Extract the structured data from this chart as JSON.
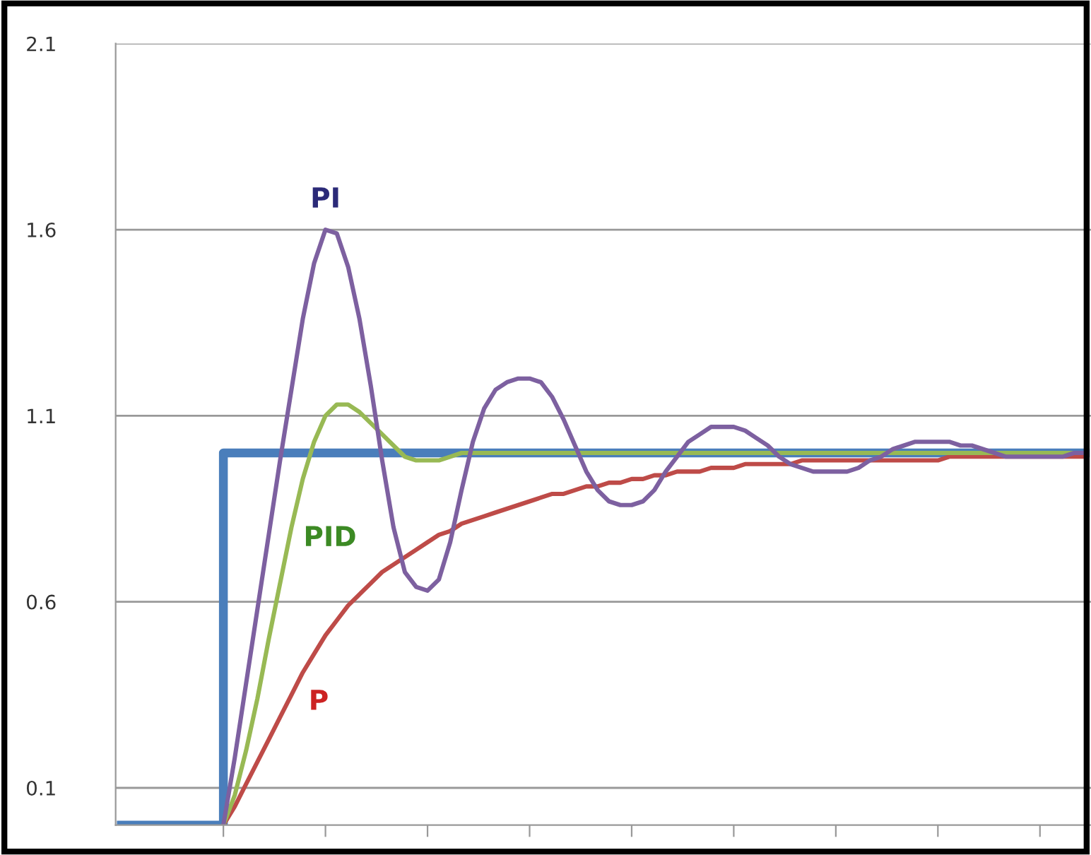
{
  "chart_data": {
    "type": "line",
    "categories": [
      null,
      null,
      null,
      null,
      null,
      null,
      null,
      null,
      null,
      null,
      null,
      null,
      null,
      null,
      null,
      null,
      null,
      null,
      null,
      null,
      null,
      null,
      null,
      null,
      null,
      null,
      null,
      null,
      null,
      null,
      null,
      null,
      null,
      null,
      null,
      null,
      null,
      null,
      null,
      null,
      null,
      null,
      null,
      null,
      null,
      null,
      null,
      null,
      null,
      null,
      null,
      null,
      null,
      null,
      null,
      null,
      null,
      null,
      null,
      null,
      null,
      null,
      null,
      null,
      null,
      null,
      null,
      null,
      null,
      null,
      null,
      null,
      null,
      null,
      null,
      null,
      null,
      null,
      null,
      null,
      null,
      null,
      null,
      null,
      null,
      null
    ],
    "ylim": [
      0,
      2.1
    ],
    "yticks": [
      0.1,
      0.6,
      1.1,
      1.6,
      2.1
    ],
    "grid": "y",
    "tick_labels": "y",
    "line_style": "solid",
    "marker": "none",
    "series": [
      {
        "type": "step",
        "color": "#4a7ebb",
        "values": [
          0,
          0,
          0,
          0,
          0,
          0,
          0,
          0,
          0,
          1,
          1,
          1,
          1,
          1,
          1,
          1,
          1,
          1,
          1,
          1,
          1,
          1,
          1,
          1,
          1,
          1,
          1,
          1,
          1,
          1,
          1,
          1,
          1,
          1,
          1,
          1,
          1,
          1,
          1,
          1,
          1,
          1,
          1,
          1,
          1,
          1,
          1,
          1,
          1,
          1,
          1,
          1,
          1,
          1,
          1,
          1,
          1,
          1,
          1,
          1,
          1,
          1,
          1,
          1,
          1,
          1,
          1,
          1,
          1,
          1,
          1,
          1,
          1,
          1,
          1,
          1,
          1,
          1,
          1,
          1,
          1,
          1,
          1,
          1,
          1,
          1
        ]
      },
      {
        "name": "P",
        "color": "#be4b48",
        "values": [
          null,
          null,
          null,
          null,
          null,
          null,
          null,
          null,
          null,
          0,
          0.05,
          0.11,
          0.17,
          0.23,
          0.29,
          0.35,
          0.41,
          0.46,
          0.51,
          0.55,
          0.59,
          0.62,
          0.65,
          0.68,
          0.7,
          0.72,
          0.74,
          0.76,
          0.78,
          0.79,
          0.81,
          0.82,
          0.83,
          0.84,
          0.85,
          0.86,
          0.87,
          0.88,
          0.89,
          0.89,
          0.9,
          0.91,
          0.91,
          0.92,
          0.92,
          0.93,
          0.93,
          0.94,
          0.94,
          0.95,
          0.95,
          0.95,
          0.96,
          0.96,
          0.96,
          0.97,
          0.97,
          0.97,
          0.97,
          0.97,
          0.98,
          0.98,
          0.98,
          0.98,
          0.98,
          0.98,
          0.98,
          0.98,
          0.98,
          0.98,
          0.98,
          0.98,
          0.98,
          0.99,
          0.99,
          0.99,
          0.99,
          0.99,
          0.99,
          0.99,
          0.99,
          0.99,
          0.99,
          0.99,
          0.99,
          0.99
        ]
      },
      {
        "name": "PID",
        "color": "#98b954",
        "values": [
          null,
          null,
          null,
          null,
          null,
          null,
          null,
          null,
          null,
          0,
          0.08,
          0.2,
          0.34,
          0.5,
          0.65,
          0.8,
          0.93,
          1.03,
          1.1,
          1.13,
          1.13,
          1.11,
          1.08,
          1.05,
          1.02,
          0.99,
          0.98,
          0.98,
          0.98,
          0.99,
          1,
          1,
          1,
          1,
          1,
          1,
          1,
          1,
          1,
          1,
          1,
          1,
          1,
          1,
          1,
          1,
          1,
          1,
          1,
          1,
          1,
          1,
          1,
          1,
          1,
          1,
          1,
          1,
          1,
          1,
          1,
          1,
          1,
          1,
          1,
          1,
          1,
          1,
          1,
          1,
          1,
          1,
          1,
          1,
          1,
          1,
          1,
          1,
          1,
          1,
          1,
          1,
          1,
          1,
          1,
          1
        ]
      },
      {
        "name": "PI",
        "color": "#7d60a0",
        "values": [
          null,
          null,
          null,
          null,
          null,
          null,
          null,
          null,
          null,
          0,
          0.18,
          0.38,
          0.58,
          0.78,
          0.98,
          1.17,
          1.36,
          1.51,
          1.6,
          1.59,
          1.5,
          1.36,
          1.18,
          0.98,
          0.8,
          0.68,
          0.64,
          0.63,
          0.66,
          0.76,
          0.9,
          1.03,
          1.12,
          1.17,
          1.19,
          1.2,
          1.2,
          1.19,
          1.15,
          1.09,
          1.02,
          0.95,
          0.9,
          0.87,
          0.86,
          0.86,
          0.87,
          0.9,
          0.95,
          0.99,
          1.03,
          1.05,
          1.07,
          1.07,
          1.07,
          1.06,
          1.04,
          1.02,
          0.99,
          0.97,
          0.96,
          0.95,
          0.95,
          0.95,
          0.95,
          0.96,
          0.98,
          0.99,
          1.01,
          1.02,
          1.03,
          1.03,
          1.03,
          1.03,
          1.02,
          1.02,
          1.01,
          1.0,
          0.99,
          0.99,
          0.99,
          0.99,
          0.99,
          0.99,
          1.0,
          1.0
        ]
      }
    ]
  }
}
